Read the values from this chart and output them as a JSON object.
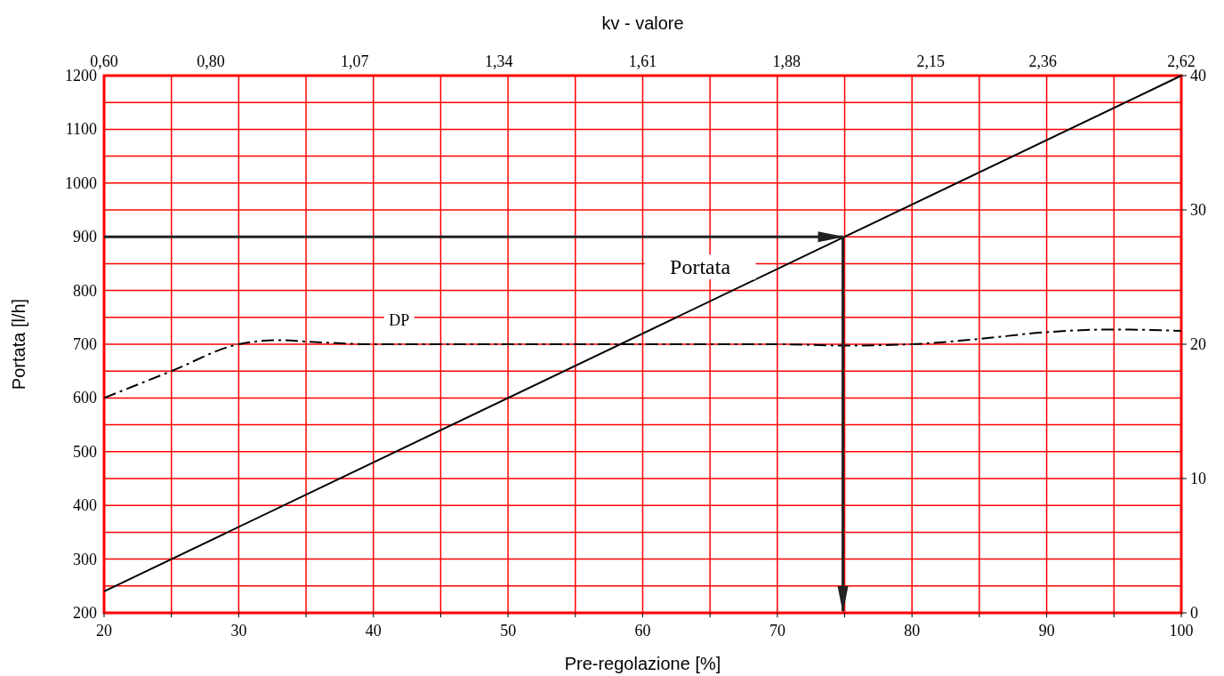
{
  "chart_data": {
    "type": "line",
    "xlabel": "Pre-regolazione [%]",
    "ylabel": "Portata [l/h]",
    "x2label": "kv - valore",
    "xlim": [
      20,
      100
    ],
    "xticks": [
      20,
      {
        "value": 25,
        "label": null
      },
      30,
      {
        "value": 35,
        "label": null
      },
      40,
      {
        "value": 45,
        "label": null
      },
      50,
      {
        "value": 55,
        "label": null
      },
      60,
      {
        "value": 65,
        "label": null
      },
      70,
      {
        "value": 75,
        "label": null
      },
      80,
      {
        "value": 85,
        "label": null
      },
      90,
      {
        "value": 95,
        "label": null
      },
      100
    ],
    "x2lim": [
      0.6,
      2.62
    ],
    "x2ticks": [
      {
        "value": 0.6,
        "label": "0,60"
      },
      {
        "value": 0.8,
        "label": "0,80"
      },
      {
        "value": 1.07,
        "label": "1,07"
      },
      {
        "value": 1.34,
        "label": "1,34"
      },
      {
        "value": 1.61,
        "label": "1,61"
      },
      {
        "value": 1.88,
        "label": "1,88"
      },
      {
        "value": 2.15,
        "label": "2,15"
      },
      {
        "value": 2.36,
        "label": "2,36"
      },
      {
        "value": 2.62,
        "label": "2,62"
      }
    ],
    "ylim": [
      200,
      1200
    ],
    "yticks": [
      200,
      {
        "value": 250,
        "label": null
      },
      300,
      {
        "value": 350,
        "label": null
      },
      400,
      {
        "value": 450,
        "label": null
      },
      500,
      {
        "value": 550,
        "label": null
      },
      600,
      {
        "value": 650,
        "label": null
      },
      700,
      {
        "value": 750,
        "label": null
      },
      800,
      {
        "value": 850,
        "label": null
      },
      900,
      {
        "value": 950,
        "label": null
      },
      1000,
      {
        "value": 1050,
        "label": null
      },
      1100,
      {
        "value": 1150,
        "label": null
      },
      1200
    ],
    "y2lim": [
      0,
      40
    ],
    "y2ticks": [
      0,
      10,
      20,
      30,
      40
    ],
    "grid": true,
    "series": [
      {
        "name": "Portata",
        "color": "#000000",
        "x": [
          20,
          75,
          100
        ],
        "values": [
          240,
          900,
          1200
        ],
        "line_style": "solid"
      },
      {
        "name": "DP",
        "color": "#000000",
        "axis": "y2",
        "line_style": "dashdot",
        "x": [
          20,
          25,
          30,
          33,
          35,
          40,
          50,
          60,
          70,
          75,
          80,
          85,
          90,
          95,
          100
        ],
        "values": [
          16,
          18,
          20,
          20.3,
          20.2,
          20,
          20,
          20,
          20,
          19.9,
          20,
          20.4,
          20.9,
          21.1,
          21
        ]
      }
    ]
  }
}
